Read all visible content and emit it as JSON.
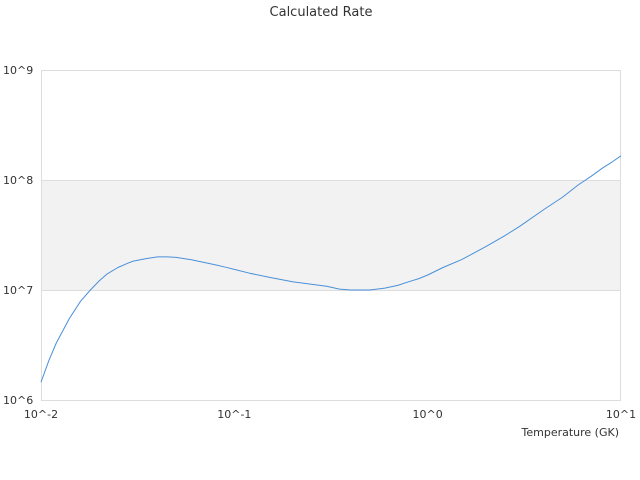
{
  "chart_data": {
    "type": "line",
    "title": "Calculated Rate",
    "xlabel": "Temperature (GK)",
    "ylabel": "",
    "x_scale": "log",
    "y_scale": "log",
    "xlim": [
      0.01,
      10
    ],
    "ylim": [
      1000000,
      1000000000
    ],
    "x_tick_labels": [
      "10^-2",
      "10^-1",
      "10^0",
      "10^1"
    ],
    "y_tick_labels": [
      "10^6",
      "10^7",
      "10^8",
      "10^9"
    ],
    "grid": true,
    "band_color": "#f2f2f2",
    "line_color": "#4a90d9",
    "series": [
      {
        "x": [
          0.01,
          0.011,
          0.012,
          0.014,
          0.016,
          0.018,
          0.02,
          0.022,
          0.025,
          0.028,
          0.03,
          0.035,
          0.04,
          0.045,
          0.05,
          0.06,
          0.07,
          0.08,
          0.09,
          0.1,
          0.12,
          0.15,
          0.2,
          0.25,
          0.3,
          0.35,
          0.4,
          0.45,
          0.5,
          0.6,
          0.7,
          0.8,
          0.9,
          1.0,
          1.2,
          1.5,
          2.0,
          2.5,
          3.0,
          4.0,
          5.0,
          6.0,
          7.0,
          8.0,
          9.0,
          10.0
        ],
        "y": [
          1450000,
          2300000,
          3300000,
          5500000,
          7900000,
          10000000,
          12100000,
          14000000,
          16000000,
          17500000,
          18300000,
          19300000,
          20000000,
          20000000,
          19800000,
          18800000,
          17800000,
          16900000,
          16100000,
          15400000,
          14200000,
          13100000,
          11900000,
          11300000,
          10800000,
          10200000,
          10000000,
          10000000,
          10000000,
          10400000,
          11000000,
          11900000,
          12700000,
          13700000,
          16000000,
          18900000,
          24800000,
          31100000,
          38000000,
          54000000,
          70000000,
          90000000,
          108000000,
          128000000,
          146000000,
          166000000
        ]
      }
    ]
  }
}
